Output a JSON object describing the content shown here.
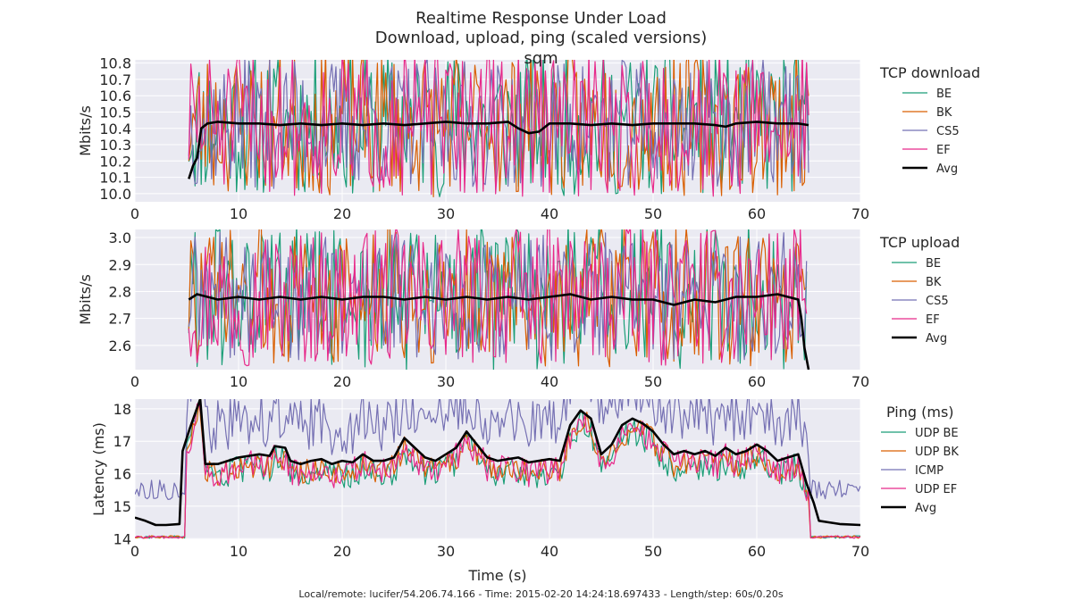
{
  "figure": {
    "title_lines": [
      "Realtime Response Under Load",
      "Download, upload, ping (scaled versions)",
      "sqm"
    ],
    "footer": "Local/remote: lucifer/54.206.74.166 - Time: 2015-02-20 14:24:18.697433 - Length/step: 60s/0.20s"
  },
  "colors": {
    "BE": "#1b9e77",
    "BK": "#d95f02",
    "CS5": "#7570b3",
    "EF": "#e7298a",
    "Avg": "#000000",
    "plot_bg": "#eaeaf2",
    "grid": "#ffffff"
  },
  "chart_data": [
    {
      "type": "line",
      "ylabel": "Mbits/s",
      "xlabel": "",
      "xlim": [
        0,
        70
      ],
      "ylim": [
        9.95,
        10.82
      ],
      "xticks": [
        0,
        10,
        20,
        30,
        40,
        50,
        60,
        70
      ],
      "yticks": [
        10.0,
        10.1,
        10.2,
        10.3,
        10.4,
        10.5,
        10.6,
        10.7,
        10.8
      ],
      "ytick_labels": [
        "10.0",
        "10.1",
        "10.2",
        "10.3",
        "10.4",
        "10.5",
        "10.6",
        "10.7",
        "10.8"
      ],
      "legend_title": "TCP download",
      "legend_placement": "right",
      "grid": true,
      "series": [
        {
          "name": "BE",
          "color_key": "BE",
          "start": 5.2,
          "end": 65,
          "center": 10.43,
          "amp": 0.45,
          "seed": 11
        },
        {
          "name": "BK",
          "color_key": "BK",
          "start": 5.2,
          "end": 65,
          "center": 10.43,
          "amp": 0.45,
          "seed": 23
        },
        {
          "name": "CS5",
          "color_key": "CS5",
          "start": 5.2,
          "end": 65,
          "center": 10.43,
          "amp": 0.4,
          "seed": 37
        },
        {
          "name": "EF",
          "color_key": "EF",
          "start": 5.2,
          "end": 65,
          "center": 10.43,
          "amp": 0.45,
          "seed": 51
        },
        {
          "name": "Avg",
          "color_key": "Avg",
          "avg": true,
          "points": [
            [
              5.2,
              10.09
            ],
            [
              5.6,
              10.17
            ],
            [
              6.0,
              10.22
            ],
            [
              6.4,
              10.4
            ],
            [
              7.0,
              10.43
            ],
            [
              8,
              10.44
            ],
            [
              10,
              10.43
            ],
            [
              12,
              10.43
            ],
            [
              14,
              10.42
            ],
            [
              16,
              10.43
            ],
            [
              18,
              10.42
            ],
            [
              20,
              10.43
            ],
            [
              22,
              10.42
            ],
            [
              24,
              10.43
            ],
            [
              26,
              10.42
            ],
            [
              28,
              10.43
            ],
            [
              30,
              10.44
            ],
            [
              32,
              10.43
            ],
            [
              34,
              10.43
            ],
            [
              36,
              10.44
            ],
            [
              37,
              10.4
            ],
            [
              38,
              10.37
            ],
            [
              39,
              10.38
            ],
            [
              40,
              10.43
            ],
            [
              42,
              10.43
            ],
            [
              44,
              10.42
            ],
            [
              46,
              10.43
            ],
            [
              48,
              10.42
            ],
            [
              50,
              10.43
            ],
            [
              52,
              10.43
            ],
            [
              54,
              10.43
            ],
            [
              56,
              10.42
            ],
            [
              57,
              10.41
            ],
            [
              58,
              10.43
            ],
            [
              60,
              10.44
            ],
            [
              62,
              10.43
            ],
            [
              64,
              10.43
            ],
            [
              65,
              10.42
            ]
          ]
        }
      ]
    },
    {
      "type": "line",
      "ylabel": "Mbits/s",
      "xlabel": "",
      "xlim": [
        0,
        70
      ],
      "ylim": [
        2.51,
        3.03
      ],
      "xticks": [
        0,
        10,
        20,
        30,
        40,
        50,
        60,
        70
      ],
      "yticks": [
        2.6,
        2.7,
        2.8,
        2.9,
        3.0
      ],
      "ytick_labels": [
        "2.6",
        "2.7",
        "2.8",
        "2.9",
        "3.0"
      ],
      "legend_title": "TCP upload",
      "legend_placement": "right",
      "grid": true,
      "series": [
        {
          "name": "BE",
          "color_key": "BE",
          "start": 5.2,
          "end": 64.8,
          "center": 2.78,
          "amp": 0.28,
          "seed": 61
        },
        {
          "name": "BK",
          "color_key": "BK",
          "start": 5.2,
          "end": 64.8,
          "center": 2.78,
          "amp": 0.26,
          "seed": 73
        },
        {
          "name": "CS5",
          "color_key": "CS5",
          "start": 5.2,
          "end": 64.8,
          "center": 2.78,
          "amp": 0.24,
          "seed": 89
        },
        {
          "name": "EF",
          "color_key": "EF",
          "start": 5.2,
          "end": 64.8,
          "center": 2.78,
          "amp": 0.26,
          "seed": 97
        },
        {
          "name": "Avg",
          "color_key": "Avg",
          "avg": true,
          "points": [
            [
              5.2,
              2.77
            ],
            [
              6,
              2.79
            ],
            [
              8,
              2.77
            ],
            [
              10,
              2.78
            ],
            [
              12,
              2.77
            ],
            [
              14,
              2.78
            ],
            [
              16,
              2.77
            ],
            [
              18,
              2.78
            ],
            [
              20,
              2.77
            ],
            [
              22,
              2.78
            ],
            [
              24,
              2.78
            ],
            [
              26,
              2.77
            ],
            [
              28,
              2.78
            ],
            [
              30,
              2.77
            ],
            [
              32,
              2.78
            ],
            [
              34,
              2.77
            ],
            [
              36,
              2.78
            ],
            [
              38,
              2.77
            ],
            [
              40,
              2.78
            ],
            [
              42,
              2.79
            ],
            [
              44,
              2.77
            ],
            [
              46,
              2.78
            ],
            [
              48,
              2.77
            ],
            [
              50,
              2.77
            ],
            [
              52,
              2.75
            ],
            [
              54,
              2.77
            ],
            [
              56,
              2.76
            ],
            [
              58,
              2.78
            ],
            [
              60,
              2.78
            ],
            [
              62,
              2.79
            ],
            [
              63,
              2.78
            ],
            [
              64,
              2.77
            ],
            [
              64.3,
              2.7
            ],
            [
              64.6,
              2.59
            ],
            [
              65,
              2.51
            ]
          ]
        }
      ]
    },
    {
      "type": "line",
      "ylabel": "Latency (ms)",
      "xlabel": "Time (s)",
      "xlim": [
        0,
        70
      ],
      "ylim": [
        13.98,
        18.3
      ],
      "xticks": [
        0,
        10,
        20,
        30,
        40,
        50,
        60,
        70
      ],
      "yticks": [
        14,
        15,
        16,
        17,
        18
      ],
      "ytick_labels": [
        "14",
        "15",
        "16",
        "17",
        "18"
      ],
      "legend_title": "Ping (ms)",
      "legend_placement": "right",
      "grid": true,
      "series": [
        {
          "name": "UDP BE",
          "color_key": "BE",
          "ping": true,
          "base": 14.05,
          "load": 16.1,
          "amp": 0.45,
          "seed": 103
        },
        {
          "name": "UDP BK",
          "color_key": "BK",
          "ping": true,
          "base": 14.05,
          "load": 16.2,
          "amp": 0.4,
          "seed": 109
        },
        {
          "name": "ICMP",
          "color_key": "CS5",
          "ping": true,
          "base": 15.5,
          "load": 17.6,
          "amp": 0.85,
          "seed": 113
        },
        {
          "name": "UDP EF",
          "color_key": "EF",
          "ping": true,
          "base": 14.05,
          "load": 16.2,
          "amp": 0.45,
          "seed": 127
        },
        {
          "name": "Avg",
          "color_key": "Avg",
          "avg": true,
          "points": [
            [
              0,
              14.65
            ],
            [
              1,
              14.55
            ],
            [
              2,
              14.42
            ],
            [
              3,
              14.42
            ],
            [
              4.3,
              14.45
            ],
            [
              4.6,
              16.7
            ],
            [
              5.3,
              17.4
            ],
            [
              6.3,
              18.3
            ],
            [
              6.8,
              16.3
            ],
            [
              8,
              16.3
            ],
            [
              10,
              16.5
            ],
            [
              12,
              16.6
            ],
            [
              13,
              16.55
            ],
            [
              13.5,
              16.85
            ],
            [
              14.5,
              16.8
            ],
            [
              15,
              16.4
            ],
            [
              16,
              16.3
            ],
            [
              17,
              16.4
            ],
            [
              18,
              16.45
            ],
            [
              19,
              16.3
            ],
            [
              20,
              16.4
            ],
            [
              21,
              16.35
            ],
            [
              22,
              16.6
            ],
            [
              23,
              16.4
            ],
            [
              24,
              16.4
            ],
            [
              25,
              16.5
            ],
            [
              26,
              17.1
            ],
            [
              27,
              16.8
            ],
            [
              28,
              16.5
            ],
            [
              29,
              16.4
            ],
            [
              30,
              16.6
            ],
            [
              31,
              16.8
            ],
            [
              32,
              17.3
            ],
            [
              33,
              16.9
            ],
            [
              34,
              16.5
            ],
            [
              35,
              16.4
            ],
            [
              36,
              16.45
            ],
            [
              37,
              16.5
            ],
            [
              38,
              16.35
            ],
            [
              40,
              16.45
            ],
            [
              41,
              16.4
            ],
            [
              42,
              17.5
            ],
            [
              43,
              17.95
            ],
            [
              44,
              17.7
            ],
            [
              45,
              16.6
            ],
            [
              46,
              16.9
            ],
            [
              47,
              17.5
            ],
            [
              48,
              17.7
            ],
            [
              49,
              17.55
            ],
            [
              50,
              17.3
            ],
            [
              51,
              16.9
            ],
            [
              52,
              16.6
            ],
            [
              53,
              16.7
            ],
            [
              54,
              16.6
            ],
            [
              55,
              16.7
            ],
            [
              56,
              16.55
            ],
            [
              57,
              16.8
            ],
            [
              58,
              16.6
            ],
            [
              59,
              16.7
            ],
            [
              60,
              16.9
            ],
            [
              61,
              16.7
            ],
            [
              62,
              16.4
            ],
            [
              63,
              16.5
            ],
            [
              64,
              16.6
            ],
            [
              64.8,
              15.7
            ],
            [
              65.5,
              15.1
            ],
            [
              66,
              14.55
            ],
            [
              67,
              14.5
            ],
            [
              68,
              14.45
            ],
            [
              70,
              14.42
            ]
          ]
        }
      ]
    }
  ]
}
